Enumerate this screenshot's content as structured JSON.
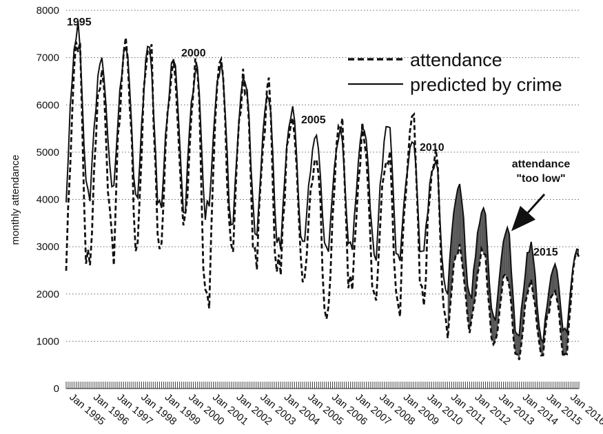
{
  "chart_data": {
    "type": "line",
    "title": "",
    "xlabel": "",
    "ylabel": "monthly attendance",
    "ylim": [
      0,
      8000
    ],
    "yticks": [
      0,
      1000,
      2000,
      3000,
      4000,
      5000,
      6000,
      7000,
      8000
    ],
    "xlim": [
      1995.0,
      2016.5
    ],
    "x_tick_labels": [
      "Jan 1995",
      "Jan 1996",
      "Jan 1997",
      "Jan 1998",
      "Jan 1999",
      "Jan 2000",
      "Jan 2001",
      "Jan 2002",
      "Jan 2003",
      "Jan 2004",
      "Jan 2005",
      "Jan 2006",
      "Jan 2007",
      "Jan 2008",
      "Jan 2009",
      "Jan 2010",
      "Jan 2011",
      "Jan 2012",
      "Jan 2013",
      "Jan 2014",
      "Jan 2015",
      "Jan 2016"
    ],
    "grid": "horizontal dotted",
    "legend_position": "top-right",
    "series": [
      {
        "name": "attendance",
        "style": "dashed",
        "annual_peaks": [
          7500,
          6700,
          7300,
          7400,
          7000,
          6800,
          6800,
          6600,
          6300,
          6000,
          5000,
          5800,
          5500,
          5000,
          5600,
          4900,
          3000,
          2950,
          2450,
          2200,
          2100,
          2900
        ],
        "annual_troughs": [
          2500,
          2900,
          3050,
          3000,
          3300,
          1850,
          3100,
          2550,
          2300,
          2350,
          1650,
          1950,
          1900,
          1550,
          1800,
          1200,
          1300,
          900,
          650,
          800,
          650,
          1800
        ]
      },
      {
        "name": "predicted by crime",
        "style": "solid",
        "annual_peaks": [
          7600,
          6900,
          7200,
          7200,
          6900,
          6800,
          6800,
          6600,
          6200,
          5900,
          5400,
          5500,
          5500,
          5650,
          5200,
          4800,
          4300,
          3850,
          3400,
          3050,
          2600,
          2950
        ],
        "annual_troughs": [
          4000,
          4200,
          4100,
          3800,
          3800,
          3700,
          3500,
          3300,
          3000,
          3000,
          3000,
          3000,
          2800,
          2700,
          2800,
          2100,
          1900,
          1500,
          1100,
          1000,
          1200,
          2650
        ]
      }
    ],
    "annotations": [
      {
        "text": "1995"
      },
      {
        "text": "2000"
      },
      {
        "text": "2005"
      },
      {
        "text": "2010"
      },
      {
        "text": "2015"
      },
      {
        "text": "attendance"
      },
      {
        "text": "\"too low\""
      }
    ],
    "shaded_region": "gap between predicted by crime (above) and attendance, 2011-2016"
  },
  "colors": {
    "line": "#111111",
    "shade": "#555555",
    "grid": "#666666"
  }
}
